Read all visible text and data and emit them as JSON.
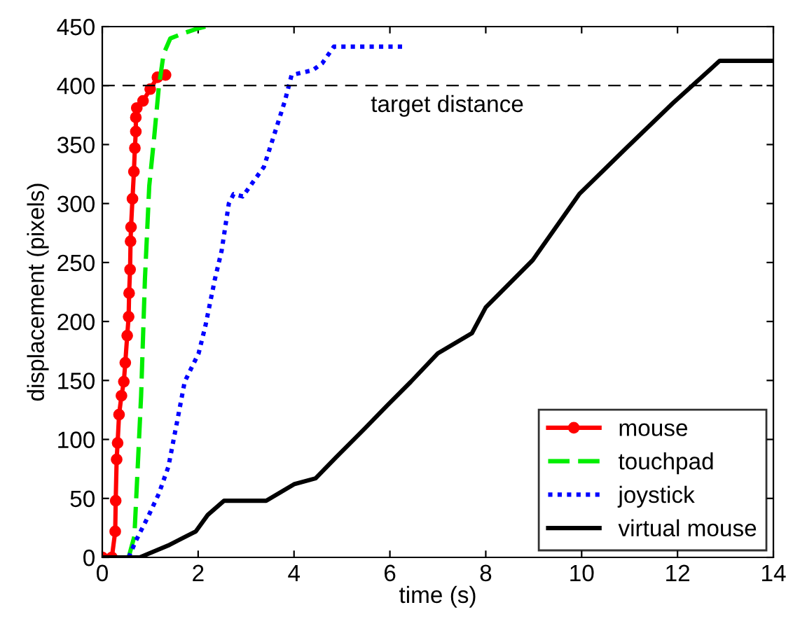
{
  "chart_data": {
    "type": "line",
    "xlabel": "time (s)",
    "ylabel": "displacement (pixels)",
    "xlim": [
      0,
      14
    ],
    "ylim": [
      0,
      450
    ],
    "xticks": [
      0,
      2,
      4,
      6,
      8,
      10,
      12,
      14
    ],
    "yticks": [
      0,
      50,
      100,
      150,
      200,
      250,
      300,
      350,
      400,
      450
    ],
    "grid": false,
    "legend": "bottom right",
    "ref_lines": [
      {
        "axis": "y",
        "value": 400,
        "label": "target distance",
        "color": "#000000",
        "line_style": "dashed"
      }
    ],
    "series": [
      {
        "name": "mouse",
        "color": "#ff0000",
        "marker": "circle",
        "line_style": "solid",
        "x": [
          0,
          0.2,
          0.27,
          0.28,
          0.3,
          0.32,
          0.35,
          0.4,
          0.45,
          0.48,
          0.52,
          0.55,
          0.56,
          0.58,
          0.59,
          0.6,
          0.63,
          0.66,
          0.68,
          0.7,
          0.7,
          0.72,
          0.85,
          1.0,
          1.15,
          1.32
        ],
        "values": [
          0,
          0,
          22,
          48,
          83,
          97,
          121,
          137,
          149,
          165,
          188,
          204,
          224,
          244,
          268,
          280,
          304,
          327,
          347,
          361,
          373,
          381,
          387,
          397,
          407,
          409
        ]
      },
      {
        "name": "touchpad",
        "color": "#00ee00",
        "marker": "none",
        "line_style": "dashed",
        "x": [
          0.55,
          0.67,
          0.74,
          0.81,
          0.89,
          0.98,
          1.08,
          1.18,
          1.28,
          1.42,
          1.67,
          1.96,
          2.15
        ],
        "values": [
          0,
          18,
          77,
          137,
          236,
          315,
          355,
          399,
          427,
          440,
          444,
          448,
          450
        ]
      },
      {
        "name": "joystick",
        "color": "#0000ff",
        "marker": "none",
        "line_style": "dotted",
        "x": [
          0.55,
          0.7,
          0.95,
          1.18,
          1.38,
          1.57,
          1.72,
          2.01,
          2.15,
          2.35,
          2.49,
          2.64,
          2.74,
          2.93,
          3.37,
          3.56,
          3.81,
          3.95,
          4.39,
          4.59,
          4.83,
          5.36,
          6.34
        ],
        "values": [
          0,
          14,
          34,
          54,
          77,
          117,
          149,
          173,
          196,
          236,
          260,
          300,
          308,
          306,
          331,
          355,
          387,
          409,
          413,
          419,
          433,
          433,
          433
        ]
      },
      {
        "name": "virtual mouse",
        "color": "#000000",
        "marker": "none",
        "line_style": "solid",
        "x": [
          0,
          0.78,
          1.37,
          1.95,
          2.2,
          2.54,
          3.42,
          4.0,
          4.45,
          4.88,
          5.47,
          5.95,
          6.44,
          7.0,
          7.71,
          8.0,
          8.98,
          9.95,
          10.93,
          11.9,
          12.88,
          13.95
        ],
        "values": [
          0,
          0,
          10,
          22,
          36,
          48,
          48,
          62,
          67,
          85,
          109,
          129,
          149,
          173,
          190,
          212,
          252,
          308,
          347,
          385,
          421,
          421
        ]
      }
    ]
  }
}
